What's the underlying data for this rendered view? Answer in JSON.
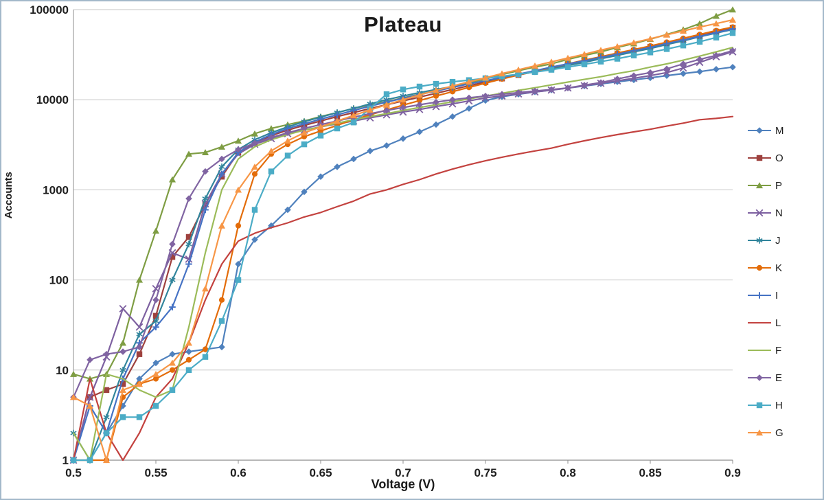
{
  "frame": {
    "border_color": "#a3b8ca",
    "background": "#ffffff"
  },
  "chart_data": {
    "type": "line",
    "title": "Plateau",
    "xlabel": "Voltage (V)",
    "ylabel": "Accounts",
    "xlim": [
      0.5,
      0.9
    ],
    "ylim": [
      1,
      100000
    ],
    "y_scale": "log",
    "grid": "horizontal",
    "grid_color": "#c6c6c6",
    "axis_color": "#8c8c8c",
    "tick_color": "#1f1f1f",
    "legend_position": "right",
    "x_ticks": [
      0.5,
      0.55,
      0.6,
      0.65,
      0.7,
      0.75,
      0.8,
      0.85,
      0.9
    ],
    "x_tick_labels": [
      "0.5",
      "0.55",
      "0.6",
      "0.65",
      "0.7",
      "0.75",
      "0.8",
      "0.85",
      "0.9"
    ],
    "y_ticks": [
      1,
      10,
      100,
      1000,
      10000,
      100000
    ],
    "y_tick_labels": [
      "1",
      "10",
      "100",
      "1000",
      "10000",
      "100000"
    ],
    "x": [
      0.5,
      0.51,
      0.52,
      0.53,
      0.54,
      0.55,
      0.56,
      0.57,
      0.58,
      0.59,
      0.6,
      0.61,
      0.62,
      0.63,
      0.64,
      0.65,
      0.66,
      0.67,
      0.68,
      0.69,
      0.7,
      0.71,
      0.72,
      0.73,
      0.74,
      0.75,
      0.76,
      0.77,
      0.78,
      0.79,
      0.8,
      0.81,
      0.82,
      0.83,
      0.84,
      0.85,
      0.86,
      0.87,
      0.88,
      0.89,
      0.9
    ],
    "series": [
      {
        "name": "M",
        "color": "#4F81BD",
        "marker": "diamond",
        "values": [
          1,
          1,
          2,
          4,
          8,
          12,
          15,
          16,
          17,
          18,
          150,
          280,
          400,
          600,
          950,
          1400,
          1800,
          2200,
          2700,
          3100,
          3700,
          4400,
          5300,
          6500,
          8000,
          9800,
          10800,
          11500,
          12200,
          12800,
          13500,
          14200,
          15000,
          15800,
          16600,
          17500,
          18500,
          19500,
          20500,
          21800,
          23000
        ]
      },
      {
        "name": "O",
        "color": "#9E413E",
        "marker": "square",
        "values": [
          1,
          5,
          6,
          7,
          15,
          40,
          180,
          300,
          700,
          1400,
          2600,
          3300,
          4000,
          4600,
          5200,
          5800,
          6500,
          7200,
          8000,
          8800,
          9700,
          10700,
          11800,
          13000,
          14300,
          15700,
          17200,
          18800,
          20500,
          22500,
          24500,
          27000,
          29500,
          32000,
          35000,
          38500,
          42000,
          46000,
          51000,
          57000,
          63000
        ]
      },
      {
        "name": "P",
        "color": "#7E9D43",
        "marker": "triangle",
        "values": [
          9,
          8,
          9,
          20,
          100,
          350,
          1300,
          2500,
          2600,
          3000,
          3500,
          4200,
          4800,
          5300,
          5800,
          6500,
          7200,
          8000,
          8800,
          9500,
          10500,
          11500,
          12500,
          14000,
          15500,
          17000,
          19000,
          21000,
          23000,
          25000,
          28000,
          31000,
          34000,
          38000,
          42000,
          47000,
          53000,
          60000,
          70000,
          85000,
          100000
        ]
      },
      {
        "name": "N",
        "color": "#7D60A0",
        "marker": "x",
        "values": [
          1,
          5,
          14,
          48,
          30,
          80,
          200,
          170,
          700,
          1500,
          2500,
          3200,
          3700,
          4200,
          4600,
          5000,
          5400,
          5800,
          6300,
          6800,
          7300,
          7800,
          8400,
          9000,
          9700,
          10500,
          11000,
          11600,
          12200,
          12800,
          13500,
          14300,
          15200,
          16200,
          17300,
          18500,
          20000,
          22500,
          26000,
          30000,
          34000
        ]
      },
      {
        "name": "J",
        "color": "#31859C",
        "marker": "asterisk",
        "values": [
          2,
          1,
          3,
          10,
          25,
          35,
          100,
          250,
          800,
          1800,
          2800,
          3600,
          4300,
          5000,
          5700,
          6400,
          7200,
          8000,
          9000,
          10000,
          11000,
          12000,
          13000,
          14000,
          15000,
          16200,
          17500,
          19000,
          20500,
          22000,
          24000,
          26000,
          28500,
          31000,
          34000,
          37000,
          41000,
          45000,
          50000,
          55000,
          60000
        ]
      },
      {
        "name": "K",
        "color": "#E36C09",
        "marker": "circle",
        "values": [
          1,
          1,
          1,
          5,
          7,
          8,
          10,
          13,
          17,
          60,
          400,
          1500,
          2500,
          3200,
          3900,
          4500,
          5200,
          6000,
          6800,
          7700,
          8700,
          9800,
          11000,
          12300,
          13700,
          15300,
          17000,
          18800,
          20700,
          22800,
          25000,
          27500,
          30000,
          33000,
          36000,
          39500,
          43500,
          48000,
          53000,
          58500,
          64000
        ]
      },
      {
        "name": "I",
        "color": "#4572C4",
        "marker": "plus",
        "values": [
          1,
          4,
          2,
          8,
          20,
          30,
          50,
          150,
          600,
          1500,
          2600,
          3400,
          4100,
          4800,
          5400,
          6100,
          6800,
          7600,
          8500,
          9400,
          10400,
          11400,
          12500,
          13700,
          15000,
          16300,
          17700,
          19200,
          21000,
          23000,
          25000,
          27000,
          29500,
          32000,
          35000,
          38000,
          42000,
          46000,
          50500,
          55500,
          61000
        ]
      },
      {
        "name": "L",
        "color": "#C3423F",
        "marker": "none",
        "values": [
          1,
          8,
          2,
          1,
          2,
          5,
          8,
          20,
          60,
          150,
          270,
          330,
          380,
          430,
          500,
          560,
          650,
          750,
          900,
          1000,
          1150,
          1300,
          1500,
          1700,
          1900,
          2100,
          2300,
          2500,
          2700,
          2900,
          3200,
          3500,
          3800,
          4100,
          4400,
          4700,
          5100,
          5500,
          6000,
          6200,
          6500
        ]
      },
      {
        "name": "F",
        "color": "#9BBB59",
        "marker": "none",
        "values": [
          2,
          1,
          9,
          8,
          6,
          5,
          6,
          30,
          200,
          1000,
          2200,
          3000,
          3600,
          4100,
          4600,
          5000,
          5500,
          6000,
          6500,
          7000,
          7600,
          8200,
          8800,
          9500,
          10200,
          11000,
          11800,
          12700,
          13600,
          14600,
          15700,
          16800,
          18000,
          19500,
          21000,
          23000,
          25000,
          27500,
          30500,
          34000,
          38000
        ]
      },
      {
        "name": "E",
        "color": "#8064A2",
        "marker": "diamond",
        "values": [
          5,
          13,
          15,
          16,
          18,
          60,
          250,
          800,
          1600,
          2200,
          2800,
          3300,
          3800,
          4300,
          4800,
          5300,
          5800,
          6400,
          7000,
          7600,
          8200,
          8800,
          9400,
          10000,
          10500,
          11000,
          11500,
          12000,
          12500,
          13000,
          13500,
          14500,
          15500,
          17000,
          18500,
          20000,
          22000,
          25000,
          28000,
          31000,
          35000
        ]
      },
      {
        "name": "H",
        "color": "#4BACC6",
        "marker": "square",
        "values": [
          1,
          1,
          2,
          3,
          3,
          4,
          6,
          10,
          14,
          35,
          100,
          600,
          1600,
          2400,
          3200,
          4000,
          4800,
          5600,
          8000,
          11500,
          13000,
          14000,
          15000,
          15800,
          16500,
          17300,
          18200,
          19200,
          20300,
          21500,
          23000,
          24700,
          26500,
          28500,
          31000,
          33500,
          36500,
          40000,
          44000,
          49000,
          55000
        ]
      },
      {
        "name": "G",
        "color": "#F79646",
        "marker": "triangle",
        "values": [
          5,
          4,
          1,
          6,
          7,
          9,
          12,
          20,
          80,
          400,
          1000,
          1800,
          2700,
          3500,
          4300,
          5000,
          5800,
          6700,
          7700,
          8800,
          10000,
          11300,
          12700,
          14200,
          15800,
          17500,
          19500,
          21500,
          23800,
          26300,
          29000,
          32000,
          35500,
          39000,
          43000,
          47500,
          52500,
          58000,
          64000,
          70000,
          77000
        ]
      }
    ]
  }
}
